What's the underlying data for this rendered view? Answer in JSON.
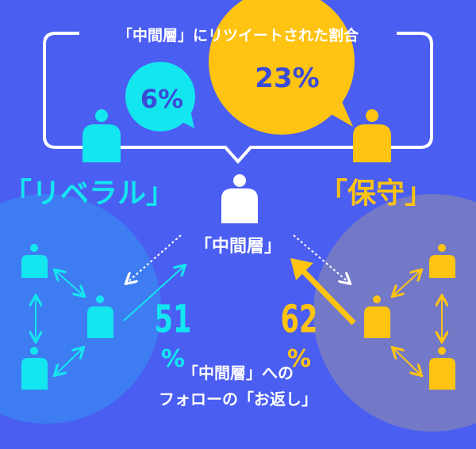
{
  "title": "「中間層」にリツイートされた割合",
  "liberal": {
    "label": "「リベラル」",
    "retweet_pct": "6%",
    "followback_value": "51",
    "followback_unit": "%"
  },
  "conservative": {
    "label": "「保守」",
    "retweet_pct": "23%",
    "followback_value": "62",
    "followback_unit": "%"
  },
  "middle": {
    "label": "「中間層」"
  },
  "caption": {
    "line1": "「中間層」への",
    "line2": "フォローの「お返し」"
  },
  "colors": {
    "background": "#4a5ef2",
    "liberal": "#14e6f0",
    "conservative": "#ffc312",
    "middle": "#ffffff",
    "bubble_text": "#3a4bd8"
  },
  "icons": [
    "person-icon",
    "speech-bubble-icon",
    "double-arrow-icon",
    "dotted-arrow-icon"
  ]
}
